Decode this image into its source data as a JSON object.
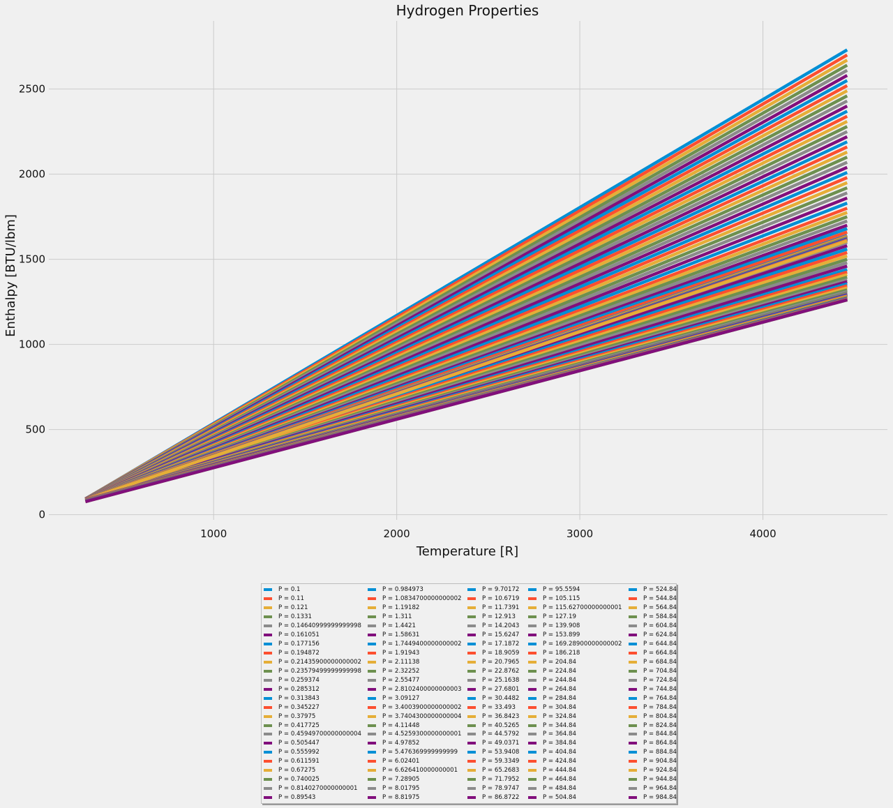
{
  "chart_data": {
    "type": "line",
    "title": "Hydrogen Properties",
    "xlabel": "Temperature [R]",
    "ylabel": "Enthalpy [BTU/lbm]",
    "xlim": [
      100,
      4680
    ],
    "ylim": [
      -30,
      2900
    ],
    "xticks": [
      1000,
      2000,
      3000,
      4000
    ],
    "yticks": [
      0,
      500,
      1000,
      1500,
      2000,
      2500
    ],
    "grid": true,
    "legend_position": "bottom-center",
    "legend_columns": 5,
    "x_range": [
      300,
      4460
    ],
    "palette": [
      "#008fd5",
      "#fc4f30",
      "#e5ae38",
      "#6d904f",
      "#8b8b8b",
      "#810f7c"
    ],
    "series_names": [
      "P = 0.1",
      "P = 0.11",
      "P = 0.121",
      "P = 0.1331",
      "P = 0.14640999999999998",
      "P = 0.161051",
      "P = 0.177156",
      "P = 0.194872",
      "P = 0.21435900000000002",
      "P = 0.23579499999999998",
      "P = 0.259374",
      "P = 0.285312",
      "P = 0.313843",
      "P = 0.345227",
      "P = 0.37975",
      "P = 0.417725",
      "P = 0.45949700000000004",
      "P = 0.505447",
      "P = 0.555992",
      "P = 0.611591",
      "P = 0.67275",
      "P = 0.740025",
      "P = 0.8140270000000001",
      "P = 0.89543",
      "P = 0.984973",
      "P = 1.0834700000000002",
      "P = 1.19182",
      "P = 1.311",
      "P = 1.4421",
      "P = 1.58631",
      "P = 1.7449400000000002",
      "P = 1.91943",
      "P = 2.11138",
      "P = 2.32252",
      "P = 2.55477",
      "P = 2.8102400000000003",
      "P = 3.09127",
      "P = 3.4003900000000002",
      "P = 3.7404300000000004",
      "P = 4.11448",
      "P = 4.5259300000000001",
      "P = 4.97852",
      "P = 5.476369999999999",
      "P = 6.02401",
      "P = 6.626410000000001",
      "P = 7.28905",
      "P = 8.01795",
      "P = 8.81975",
      "P = 9.70172",
      "P = 10.6719",
      "P = 11.7391",
      "P = 12.913",
      "P = 14.2043",
      "P = 15.6247",
      "P = 17.1872",
      "P = 18.9059",
      "P = 20.7965",
      "P = 22.8762",
      "P = 25.1638",
      "P = 27.6801",
      "P = 30.4482",
      "P = 33.493",
      "P = 36.8423",
      "P = 40.5265",
      "P = 44.5792",
      "P = 49.0371",
      "P = 53.9408",
      "P = 59.3349",
      "P = 65.2683",
      "P = 71.7952",
      "P = 78.9747",
      "P = 86.8722",
      "P = 95.5594",
      "P = 105.115",
      "P = 115.62700000000001",
      "P = 127.19",
      "P = 139.908",
      "P = 153.899",
      "P = 169.28900000000002",
      "P = 186.218",
      "P = 204.84",
      "P = 224.84",
      "P = 244.84",
      "P = 264.84",
      "P = 284.84",
      "P = 304.84",
      "P = 324.84",
      "P = 344.84",
      "P = 364.84",
      "P = 384.84",
      "P = 404.84",
      "P = 424.84",
      "P = 444.84",
      "P = 464.84",
      "P = 484.84",
      "P = 504.84",
      "P = 524.84",
      "P = 544.84",
      "P = 564.84",
      "P = 584.84",
      "P = 604.84",
      "P = 624.84",
      "P = 644.84",
      "P = 664.84",
      "P = 684.84",
      "P = 704.84",
      "P = 724.84",
      "P = 744.84",
      "P = 764.84",
      "P = 784.84",
      "P = 804.84",
      "P = 824.84",
      "P = 844.84",
      "P = 864.84",
      "P = 884.84",
      "P = 904.84",
      "P = 924.84",
      "P = 944.84",
      "P = 964.84",
      "P = 984.84"
    ],
    "start_y": [
      93,
      93,
      93,
      93,
      93,
      93,
      93,
      93,
      93,
      93,
      93,
      93,
      93,
      93,
      93,
      93,
      93,
      93,
      93,
      93,
      93,
      93,
      93,
      93,
      92,
      92,
      92,
      92,
      92,
      92,
      92,
      92,
      92,
      92,
      92,
      92,
      92,
      92,
      92,
      92,
      92,
      92,
      92,
      92,
      92,
      92,
      92,
      92,
      91,
      91,
      91,
      91,
      91,
      91,
      91,
      91,
      91,
      91,
      91,
      91,
      90,
      90,
      90,
      90,
      90,
      90,
      90,
      90,
      90,
      89,
      89,
      89,
      89,
      89,
      88,
      88,
      88,
      88,
      87,
      87,
      86,
      86,
      86,
      85,
      85,
      85,
      84,
      84,
      84,
      83,
      83,
      83,
      82,
      82,
      82,
      82,
      81,
      81,
      81,
      81,
      80,
      80,
      80,
      80,
      79,
      79,
      79,
      79,
      79,
      78,
      78,
      78,
      78,
      78,
      78,
      77,
      77,
      77,
      77,
      77
    ],
    "end_y": [
      2730,
      2700,
      2670,
      2640,
      2610,
      2580,
      2550,
      2520,
      2490,
      2460,
      2430,
      2400,
      2370,
      2340,
      2310,
      2280,
      2250,
      2220,
      2190,
      2160,
      2130,
      2100,
      2070,
      2040,
      2010,
      1980,
      1950,
      1920,
      1890,
      1860,
      1830,
      1800,
      1775,
      1750,
      1725,
      1700,
      1680,
      1660,
      1640,
      1620,
      1600,
      1580,
      1560,
      1540,
      1520,
      1500,
      1480,
      1460,
      1440,
      1425,
      1410,
      1395,
      1380,
      1368,
      1356,
      1344,
      1332,
      1320,
      1310,
      1300,
      1292,
      1285,
      1278,
      1272,
      1266,
      1262,
      1640,
      1636,
      1632,
      1628,
      1624,
      1620,
      1616,
      1612,
      1608,
      1300,
      1296,
      1292,
      1288,
      1284,
      1280,
      1276,
      1272,
      1270,
      1268,
      1266,
      1264,
      1263,
      1262,
      1262,
      1262,
      1262,
      1262,
      1262,
      1262,
      1262,
      1262,
      1262,
      1262,
      1262,
      1262,
      1262,
      1262,
      1262,
      1262,
      1262,
      1262,
      1262,
      1262,
      1262,
      1262,
      1262,
      1262,
      1262,
      1262,
      1262,
      1262,
      1262,
      1262,
      1262
    ]
  }
}
